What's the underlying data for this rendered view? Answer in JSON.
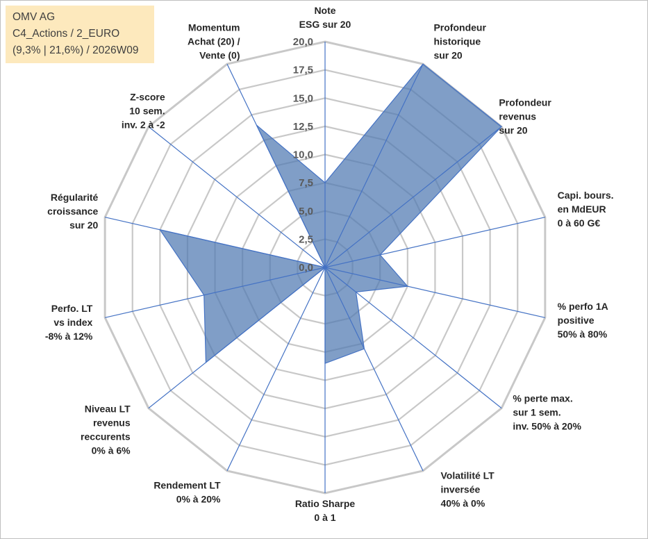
{
  "info_box": {
    "line1": "OMV AG",
    "line2": "C4_Actions / 2_EURO",
    "line3": "(9,3% | 21,6%) / 2026W09"
  },
  "chart_data": {
    "type": "radar",
    "rmin": 0,
    "rmax": 20,
    "ticks": [
      "0,0",
      "2,5",
      "5,0",
      "7,5",
      "10,0",
      "12,5",
      "15,0",
      "17,5",
      "20,0"
    ],
    "tick_values": [
      0,
      2.5,
      5,
      7.5,
      10,
      12.5,
      15,
      17.5,
      20
    ],
    "grid": true,
    "fill_color": "#4f79b1",
    "line_color": "#4472c4",
    "grid_color": "#c8c8c8",
    "axes": [
      {
        "label": [
          "Note",
          "ESG sur 20"
        ],
        "value": 7.5
      },
      {
        "label": [
          "Profondeur",
          "historique",
          "sur 20"
        ],
        "value": 20
      },
      {
        "label": [
          "Profondeur",
          "revenus",
          "sur 20"
        ],
        "value": 20
      },
      {
        "label": [
          "Capi. bours.",
          "en MdEUR",
          "0 à 60 G€"
        ],
        "value": 5
      },
      {
        "label": [
          "% perfo 1A",
          "positive",
          "50% à 80%"
        ],
        "value": 7.5
      },
      {
        "label": [
          "% perte max.",
          "sur 1 sem.",
          "inv. 50% à 20%"
        ],
        "value": 3.5
      },
      {
        "label": [
          "Volatilité LT",
          "inversée",
          "40% à 0%"
        ],
        "value": 8
      },
      {
        "label": [
          "Ratio Sharpe",
          "0 à 1"
        ],
        "value": 8.5
      },
      {
        "label": [
          "Rendement LT",
          "0% à 20%"
        ],
        "value": 0
      },
      {
        "label": [
          "Niveau LT",
          "revenus",
          "reccurents",
          "0% à 6%"
        ],
        "value": 13.5
      },
      {
        "label": [
          "Perfo. LT",
          "vs index",
          "-8% à 12%"
        ],
        "value": 11
      },
      {
        "label": [
          "Régularité",
          "croissance",
          "sur 20"
        ],
        "value": 15
      },
      {
        "label": [
          "Z-score",
          "10 sem.",
          "inv. 2 à -2"
        ],
        "value": 0
      },
      {
        "label": [
          "Momentum",
          "Achat (20) /",
          "Vente (0)"
        ],
        "value": 14
      }
    ]
  }
}
